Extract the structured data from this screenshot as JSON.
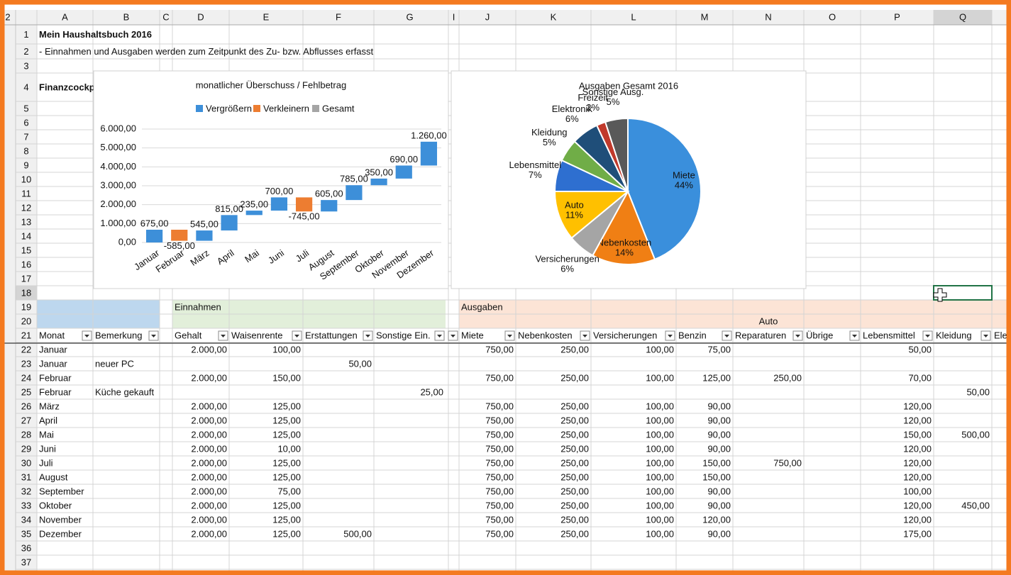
{
  "sheet": {
    "outline_level": "2",
    "columns": [
      "A",
      "B",
      "C",
      "D",
      "E",
      "F",
      "G",
      "I",
      "J",
      "K",
      "L",
      "M",
      "N",
      "O",
      "P",
      "Q"
    ],
    "rows": [
      "1",
      "2",
      "3",
      "4",
      "5",
      "6",
      "7",
      "8",
      "9",
      "10",
      "11",
      "12",
      "13",
      "14",
      "15",
      "16",
      "17",
      "18",
      "19",
      "20",
      "21",
      "22",
      "23",
      "24",
      "25",
      "26",
      "27",
      "28",
      "29",
      "30",
      "31",
      "32",
      "33",
      "34",
      "35",
      "36",
      "37"
    ],
    "cells": {
      "A1": "Mein Haushaltsbuch 2016",
      "A2": "- Einnahmen und Ausgaben werden zum Zeitpunkt des Zu- bzw. Abflusses erfasst",
      "A4": "Finanzcockpi",
      "D19": "Einnahmen",
      "J19": "Ausgaben",
      "M20": "Auto",
      "A21": "Monat",
      "B21": "Bemerkung",
      "D21": "Gehalt",
      "E21": "Waisenrente",
      "F21": "Erstattungen",
      "G21": "Sonstige Ein.",
      "J21": "Miete",
      "K21": "Nebenkosten",
      "L21": "Versicherungen",
      "M21": "Benzin",
      "N21": "Reparaturen",
      "O21": "Übrige",
      "P21": "Lebensmittel",
      "Q21": "Kleidung",
      "R21": "Ele",
      "A22": "Januar",
      "D22": "2.000,00",
      "E22": "100,00",
      "J22": "750,00",
      "K22": "250,00",
      "L22": "100,00",
      "M22": "75,00",
      "P22": "50,00",
      "A23": "Januar",
      "B23": "neuer PC",
      "F23": "50,00",
      "A24": "Februar",
      "D24": "2.000,00",
      "E24": "150,00",
      "J24": "750,00",
      "K24": "250,00",
      "L24": "100,00",
      "M24": "125,00",
      "N24": "250,00",
      "P24": "70,00",
      "A25": "Februar",
      "B25": "Küche gekauft",
      "G25": "25,00",
      "Q25": "50,00",
      "A26": "März",
      "D26": "2.000,00",
      "E26": "125,00",
      "J26": "750,00",
      "K26": "250,00",
      "L26": "100,00",
      "M26": "90,00",
      "P26": "120,00",
      "A27": "April",
      "D27": "2.000,00",
      "E27": "125,00",
      "J27": "750,00",
      "K27": "250,00",
      "L27": "100,00",
      "M27": "90,00",
      "P27": "120,00",
      "A28": "Mai",
      "D28": "2.000,00",
      "E28": "125,00",
      "J28": "750,00",
      "K28": "250,00",
      "L28": "100,00",
      "M28": "90,00",
      "P28": "150,00",
      "Q28": "500,00",
      "A29": "Juni",
      "D29": "2.000,00",
      "E29": "10,00",
      "J29": "750,00",
      "K29": "250,00",
      "L29": "100,00",
      "M29": "90,00",
      "P29": "120,00",
      "A30": "Juli",
      "D30": "2.000,00",
      "E30": "125,00",
      "J30": "750,00",
      "K30": "250,00",
      "L30": "100,00",
      "M30": "150,00",
      "N30": "750,00",
      "P30": "120,00",
      "A31": "August",
      "D31": "2.000,00",
      "E31": "125,00",
      "J31": "750,00",
      "K31": "250,00",
      "L31": "100,00",
      "M31": "150,00",
      "P31": "120,00",
      "A32": "September",
      "D32": "2.000,00",
      "E32": "75,00",
      "J32": "750,00",
      "K32": "250,00",
      "L32": "100,00",
      "M32": "90,00",
      "P32": "100,00",
      "A33": "Oktober",
      "D33": "2.000,00",
      "E33": "125,00",
      "J33": "750,00",
      "K33": "250,00",
      "L33": "100,00",
      "M33": "90,00",
      "P33": "120,00",
      "Q33": "450,00",
      "A34": "November",
      "D34": "2.000,00",
      "E34": "125,00",
      "J34": "750,00",
      "K34": "250,00",
      "L34": "100,00",
      "M34": "120,00",
      "P34": "120,00",
      "A35": "Dezember",
      "D35": "2.000,00",
      "E35": "125,00",
      "F35": "500,00",
      "J35": "750,00",
      "K35": "250,00",
      "L35": "100,00",
      "M35": "90,00",
      "P35": "175,00"
    }
  },
  "charts": [
    {
      "type": "waterfall",
      "title": "monatlicher Überschuss / Fehlbetrag",
      "legend": [
        {
          "name": "Vergrößern",
          "color": "#3d8fd9"
        },
        {
          "name": "Verkleinern",
          "color": "#ed7d31"
        },
        {
          "name": "Gesamt",
          "color": "#a5a5a5"
        }
      ],
      "categories": [
        "Januar",
        "Februar",
        "März",
        "April",
        "Mai",
        "Juni",
        "Juli",
        "August",
        "September",
        "Oktober",
        "November",
        "Dezember"
      ],
      "values": [
        675,
        -585,
        545,
        815,
        235,
        700,
        -745,
        605,
        785,
        350,
        690,
        1260
      ],
      "value_labels": [
        "675,00",
        "-585,00",
        "545,00",
        "815,00",
        "235,00",
        "700,00",
        "-745,00",
        "605,00",
        "785,00",
        "350,00",
        "690,00",
        "1.260,00"
      ],
      "ylim": [
        0,
        6000
      ],
      "yticks": [
        {
          "value": 0,
          "label": "0,00"
        },
        {
          "value": 1000,
          "label": "1.000,00"
        },
        {
          "value": 2000,
          "label": "2.000,00"
        },
        {
          "value": 3000,
          "label": "3.000,00"
        },
        {
          "value": 4000,
          "label": "4.000,00"
        },
        {
          "value": 5000,
          "label": "5.000,00"
        },
        {
          "value": 6000,
          "label": "6.000,00"
        }
      ],
      "grid": true
    },
    {
      "type": "pie",
      "title": "Ausgaben Gesamt 2016",
      "categories": [
        "Miete",
        "Nebenkosten",
        "Versicherungen",
        "Auto",
        "Lebensmittel",
        "Kleidung",
        "Elektronik",
        "Freizeit",
        "Sonstige Ausg."
      ],
      "values": [
        44,
        14,
        6,
        11,
        7,
        5,
        6,
        2,
        5
      ],
      "value_labels": [
        "44%",
        "14%",
        "6%",
        "11%",
        "7%",
        "5%",
        "6%",
        "2%",
        "5%"
      ],
      "colors": [
        "#3a8fdc",
        "#f07f14",
        "#a5a5a5",
        "#ffc000",
        "#2e6fd0",
        "#70ad47",
        "#1f4e79",
        "#c0392b",
        "#595959"
      ]
    }
  ]
}
